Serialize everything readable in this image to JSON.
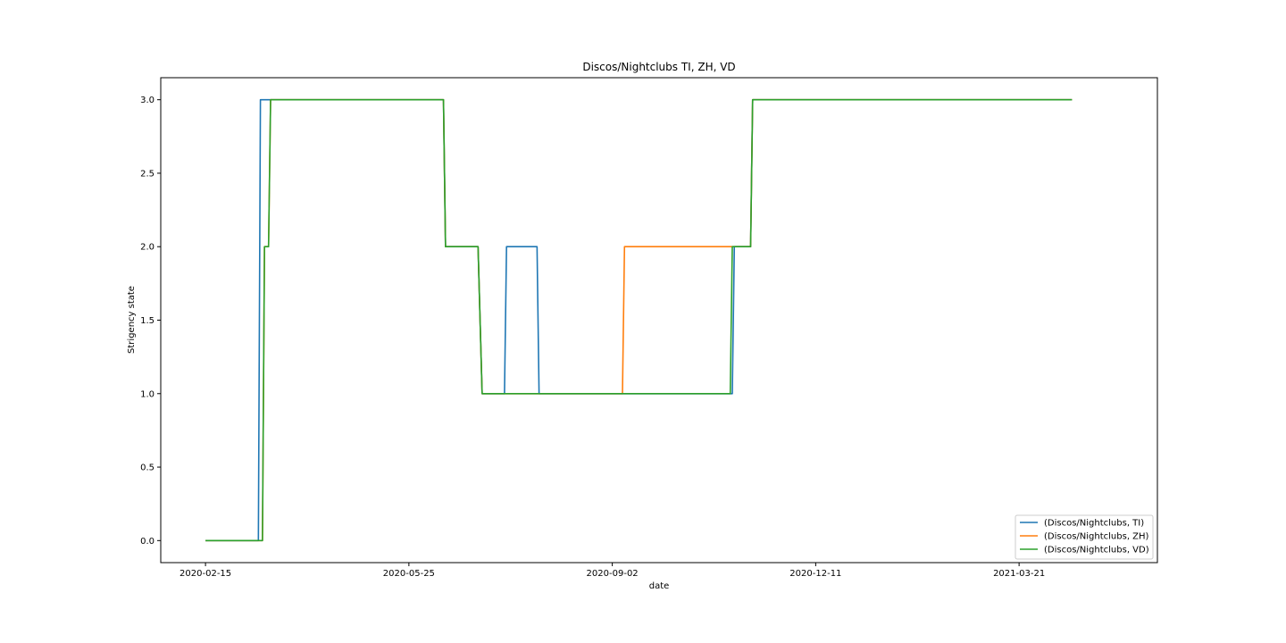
{
  "chart_data": {
    "type": "line",
    "title": "Discos/Nightclubs TI, ZH, VD",
    "xlabel": "date",
    "ylabel": "Strigency state",
    "x_ticks": [
      "2020-02-15",
      "2020-05-25",
      "2020-09-02",
      "2020-12-11",
      "2021-03-21"
    ],
    "y_ticks": [
      "0.0",
      "0.5",
      "1.0",
      "1.5",
      "2.0",
      "2.5",
      "3.0"
    ],
    "xlim": [
      "2020-01-24",
      "2021-05-28"
    ],
    "ylim": [
      -0.15,
      3.15
    ],
    "grid": false,
    "legend_position": "lower right",
    "series": [
      {
        "name": "(Discos/Nightclubs, TI)",
        "color": "#1f77b4",
        "points": [
          [
            "2020-02-15",
            0
          ],
          [
            "2020-03-12",
            0
          ],
          [
            "2020-03-13",
            3
          ],
          [
            "2020-06-11",
            3
          ],
          [
            "2020-06-12",
            2
          ],
          [
            "2020-06-28",
            2
          ],
          [
            "2020-06-30",
            1
          ],
          [
            "2020-07-11",
            1
          ],
          [
            "2020-07-12",
            2
          ],
          [
            "2020-07-27",
            2
          ],
          [
            "2020-07-28",
            1
          ],
          [
            "2020-10-31",
            1
          ],
          [
            "2020-11-01",
            2
          ],
          [
            "2020-11-09",
            2
          ],
          [
            "2020-11-10",
            3
          ],
          [
            "2021-04-16",
            3
          ]
        ]
      },
      {
        "name": "(Discos/Nightclubs, ZH)",
        "color": "#ff7f0e",
        "points": [
          [
            "2020-02-15",
            0
          ],
          [
            "2020-03-14",
            0
          ],
          [
            "2020-03-15",
            2
          ],
          [
            "2020-03-17",
            2
          ],
          [
            "2020-03-18",
            3
          ],
          [
            "2020-06-11",
            3
          ],
          [
            "2020-06-12",
            2
          ],
          [
            "2020-06-28",
            2
          ],
          [
            "2020-06-30",
            1
          ],
          [
            "2020-09-07",
            1
          ],
          [
            "2020-09-08",
            2
          ],
          [
            "2020-11-09",
            2
          ],
          [
            "2020-11-10",
            3
          ],
          [
            "2021-04-16",
            3
          ]
        ]
      },
      {
        "name": "(Discos/Nightclubs, VD)",
        "color": "#2ca02c",
        "points": [
          [
            "2020-02-15",
            0
          ],
          [
            "2020-03-14",
            0
          ],
          [
            "2020-03-15",
            2
          ],
          [
            "2020-03-17",
            2
          ],
          [
            "2020-03-18",
            3
          ],
          [
            "2020-06-11",
            3
          ],
          [
            "2020-06-12",
            2
          ],
          [
            "2020-06-28",
            2
          ],
          [
            "2020-06-30",
            1
          ],
          [
            "2020-10-30",
            1
          ],
          [
            "2020-10-31",
            2
          ],
          [
            "2020-11-09",
            2
          ],
          [
            "2020-11-10",
            3
          ],
          [
            "2021-04-16",
            3
          ]
        ]
      }
    ]
  }
}
